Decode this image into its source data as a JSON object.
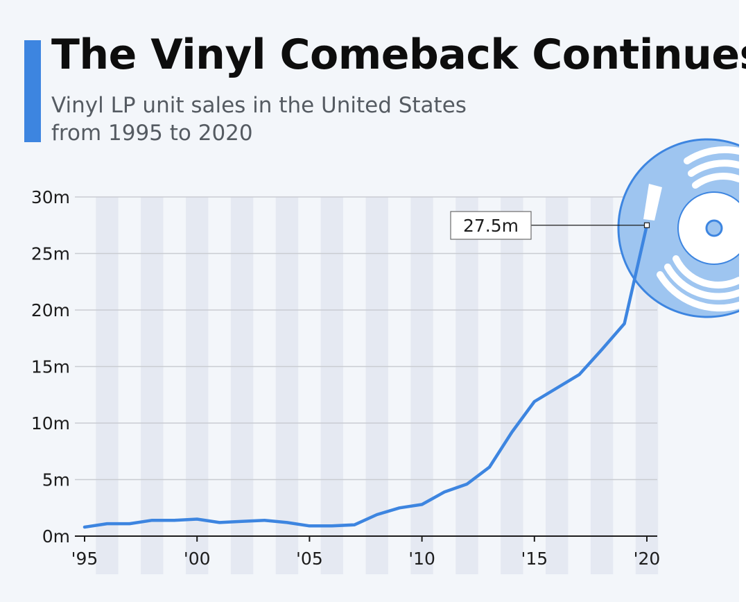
{
  "header": {
    "title": "The Vinyl Comeback Continues",
    "subtitle_line1": "Vinyl LP unit sales in the United States",
    "subtitle_line2": "from 1995 to 2020"
  },
  "colors": {
    "accent": "#3d85e0",
    "line": "#3d85e0",
    "record_light": "#9ec5f0",
    "band": "#e5e9f2"
  },
  "icons": {
    "record": "vinyl-record-icon"
  },
  "chart_data": {
    "type": "line",
    "title": "The Vinyl Comeback Continues",
    "subtitle": "Vinyl LP unit sales in the United States from 1995 to 2020",
    "xlabel": "",
    "ylabel": "",
    "x": [
      1995,
      1996,
      1997,
      1998,
      1999,
      2000,
      2001,
      2002,
      2003,
      2004,
      2005,
      2006,
      2007,
      2008,
      2009,
      2010,
      2011,
      2012,
      2013,
      2014,
      2015,
      2016,
      2017,
      2018,
      2019,
      2020
    ],
    "series": [
      {
        "values": [
          0.8,
          1.1,
          1.1,
          1.4,
          1.4,
          1.5,
          1.2,
          1.3,
          1.4,
          1.2,
          0.9,
          0.9,
          1.0,
          1.9,
          2.5,
          2.8,
          3.9,
          4.6,
          6.1,
          9.2,
          11.9,
          13.1,
          14.3,
          16.5,
          18.8,
          27.5
        ]
      }
    ],
    "ylim": [
      0,
      30
    ],
    "xlim": [
      1995,
      2020
    ],
    "y_ticks": [
      0,
      5,
      10,
      15,
      20,
      25,
      30
    ],
    "y_tick_labels": [
      "0m",
      "5m",
      "10m",
      "15m",
      "20m",
      "25m",
      "30m"
    ],
    "x_ticks": [
      1995,
      2000,
      2005,
      2010,
      2015,
      2020
    ],
    "x_tick_labels": [
      "'95",
      "'00",
      "'05",
      "'10",
      "'15",
      "'20"
    ],
    "annotation": {
      "x": 2020,
      "y": 27.5,
      "label": "27.5m"
    },
    "grid": true,
    "alternating_year_bands": true
  }
}
